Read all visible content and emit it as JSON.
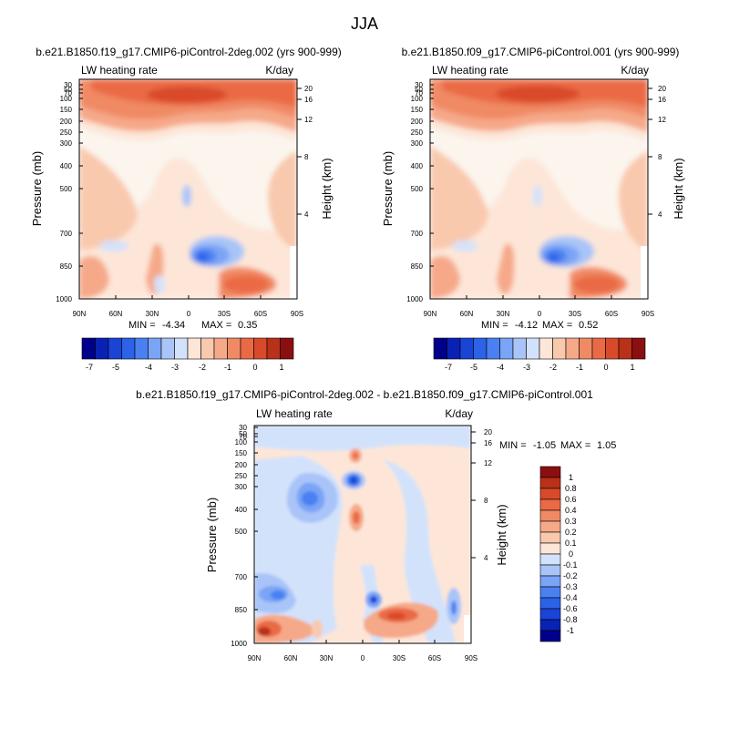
{
  "figure": {
    "title": "JJA"
  },
  "colors": {
    "blues": [
      "#00008b",
      "#0a22b4",
      "#1a44d6",
      "#2c62e8",
      "#4a80f2",
      "#7aa4f5",
      "#a9c4f8",
      "#d3e2fb"
    ],
    "reds": [
      "#fde6d8",
      "#f9c9ae",
      "#f5a989",
      "#f08a65",
      "#ea6a45",
      "#d94a2a",
      "#b83118",
      "#8b0f0f"
    ],
    "neutral": "#fbf5ee"
  },
  "chart_data": [
    {
      "id": "top-left",
      "type": "contour",
      "title": "b.e21.B1850.f19_g17.CMIP6-piControl-2deg.002 (yrs 900-999)",
      "left_label": "LW heating rate",
      "right_label": "K/day",
      "xlabel": "",
      "ylabel": "Pressure (mb)",
      "y2label": "Height (km)",
      "x_ticks": [
        "90N",
        "60N",
        "30N",
        "0",
        "30S",
        "60S",
        "90S"
      ],
      "y_ticks": [
        "30",
        "50",
        "70",
        "100",
        "150",
        "200",
        "250",
        "300",
        "400",
        "500",
        "700",
        "850",
        "1000"
      ],
      "y2_ticks": [
        "20",
        "16",
        "12",
        "8",
        "4"
      ],
      "stats": {
        "min_label": "MIN =",
        "min": "-4.34",
        "max_label": "MAX =",
        "max": "0.35"
      },
      "ylim": [
        1000,
        30
      ],
      "xlim": [
        "90N",
        "90S"
      ]
    },
    {
      "id": "top-right",
      "type": "contour",
      "title": "b.e21.B1850.f09_g17.CMIP6-piControl.001 (yrs 900-999)",
      "left_label": "LW heating rate",
      "right_label": "K/day",
      "xlabel": "",
      "ylabel": "Pressure (mb)",
      "y2label": "Height (km)",
      "x_ticks": [
        "90N",
        "60N",
        "30N",
        "0",
        "30S",
        "60S",
        "90S"
      ],
      "y_ticks": [
        "30",
        "50",
        "70",
        "100",
        "150",
        "200",
        "250",
        "300",
        "400",
        "500",
        "700",
        "850",
        "1000"
      ],
      "y2_ticks": [
        "20",
        "16",
        "12",
        "8",
        "4"
      ],
      "stats": {
        "min_label": "MIN =",
        "min": "-4.12",
        "max_label": "MAX =",
        "max": "0.52"
      },
      "ylim": [
        1000,
        30
      ],
      "xlim": [
        "90N",
        "90S"
      ]
    },
    {
      "id": "bottom-diff",
      "type": "contour",
      "title": "b.e21.B1850.f19_g17.CMIP6-piControl-2deg.002 - b.e21.B1850.f09_g17.CMIP6-piControl.001",
      "left_label": "LW heating rate",
      "right_label": "K/day",
      "xlabel": "",
      "ylabel": "Pressure (mb)",
      "y2label": "Height (km)",
      "x_ticks": [
        "90N",
        "60N",
        "30N",
        "0",
        "30S",
        "60S",
        "90S"
      ],
      "y_ticks": [
        "30",
        "50",
        "70",
        "100",
        "150",
        "200",
        "250",
        "300",
        "400",
        "500",
        "700",
        "850",
        "1000"
      ],
      "y2_ticks": [
        "20",
        "16",
        "12",
        "8",
        "4"
      ],
      "stats": {
        "min_label": "MIN =",
        "min": "-1.05",
        "max_label": "MAX =",
        "max": "1.05"
      },
      "ylim": [
        1000,
        30
      ],
      "xlim": [
        "90N",
        "90S"
      ]
    }
  ],
  "colorbars": [
    {
      "id": "top-left-colorbar",
      "orientation": "horizontal",
      "levels": [
        "-7",
        "-5",
        "-4",
        "-3",
        "-2",
        "-1",
        "0",
        "1"
      ],
      "boxes": [
        "#00008b",
        "#0a22b4",
        "#1a44d6",
        "#2c62e8",
        "#4a80f2",
        "#7aa4f5",
        "#a9c4f8",
        "#d3e2fb",
        "#fde6d8",
        "#f9c9ae",
        "#f5a989",
        "#f08a65",
        "#ea6a45",
        "#d94a2a",
        "#b83118",
        "#8b0f0f"
      ]
    },
    {
      "id": "top-right-colorbar",
      "orientation": "horizontal",
      "levels": [
        "-7",
        "-5",
        "-4",
        "-3",
        "-2",
        "-1",
        "0",
        "1"
      ],
      "boxes": [
        "#00008b",
        "#0a22b4",
        "#1a44d6",
        "#2c62e8",
        "#4a80f2",
        "#7aa4f5",
        "#a9c4f8",
        "#d3e2fb",
        "#fde6d8",
        "#f9c9ae",
        "#f5a989",
        "#f08a65",
        "#ea6a45",
        "#d94a2a",
        "#b83118",
        "#8b0f0f"
      ]
    },
    {
      "id": "diff-colorbar",
      "orientation": "vertical",
      "levels": [
        "1",
        "0.8",
        "0.6",
        "0.4",
        "0.3",
        "0.2",
        "0.1",
        "0",
        "-0.1",
        "-0.2",
        "-0.3",
        "-0.4",
        "-0.6",
        "-0.8",
        "-1"
      ],
      "boxes": [
        "#8b0f0f",
        "#b83118",
        "#d94a2a",
        "#ea6a45",
        "#f08a65",
        "#f5a989",
        "#f9c9ae",
        "#fde6d8",
        "#d3e2fb",
        "#a9c4f8",
        "#7aa4f5",
        "#4a80f2",
        "#2c62e8",
        "#1a44d6",
        "#0a22b4",
        "#00008b"
      ]
    }
  ]
}
